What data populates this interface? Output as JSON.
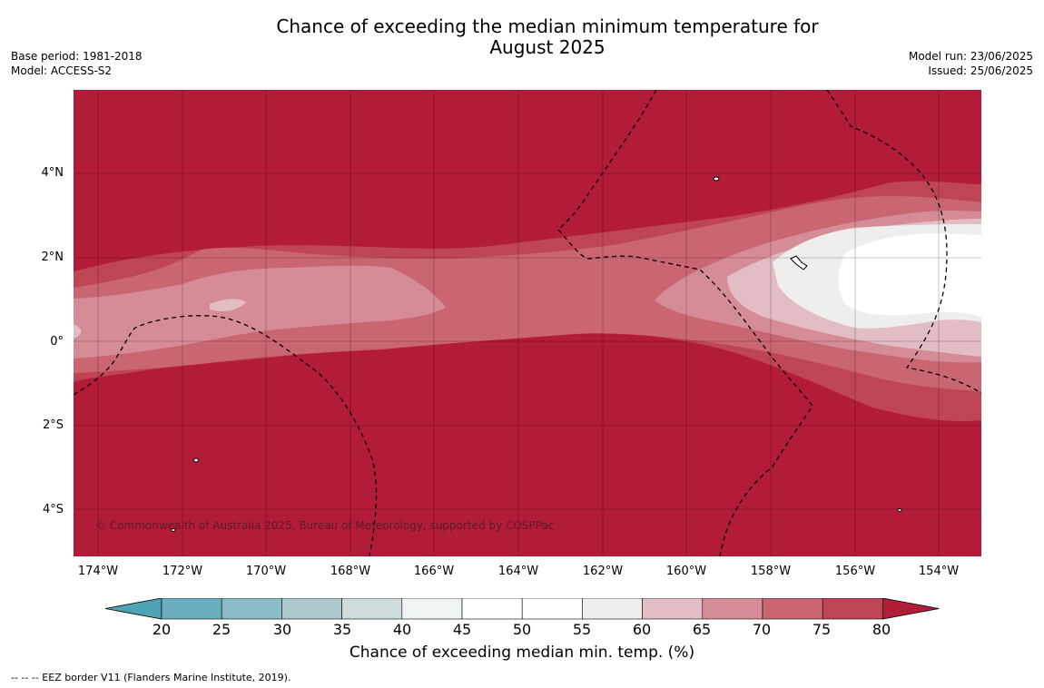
{
  "title_line1": "Chance of exceeding the median minimum temperature for",
  "title_line2": "August 2025",
  "meta_left": {
    "base_period": "Base period: 1981-2018",
    "model": "Model: ACCESS-S2"
  },
  "meta_right": {
    "model_run": "Model run: 23/06/2025",
    "issued": "Issued: 25/06/2025"
  },
  "copyright": "© Commonwealth of Australia 2025, Bureau of Meteorology, supported by COSPPac",
  "lat_ticks": [
    "4°N",
    "2°N",
    "0°",
    "2°S",
    "4°S"
  ],
  "lon_ticks": [
    "174°W",
    "172°W",
    "170°W",
    "168°W",
    "166°W",
    "164°W",
    "162°W",
    "160°W",
    "158°W",
    "156°W",
    "154°W"
  ],
  "colorbar": {
    "label": "Chance of exceeding median min. temp. (%)",
    "ticks": [
      "20",
      "25",
      "30",
      "35",
      "40",
      "45",
      "50",
      "55",
      "60",
      "65",
      "70",
      "75",
      "80"
    ],
    "colors": [
      "#4fa3b4",
      "#6aaebf",
      "#8cbcc7",
      "#aac8cd",
      "#cfdcdd",
      "#eef4f4",
      "#ffffff",
      "#ffffff",
      "#efeeec",
      "#e2bdc4",
      "#d68c96",
      "#c96672",
      "#bf4555",
      "#b31c39"
    ]
  },
  "footnote": "--  --  -- EEZ border V11 (Flanders Marine Institute, 2019)."
}
